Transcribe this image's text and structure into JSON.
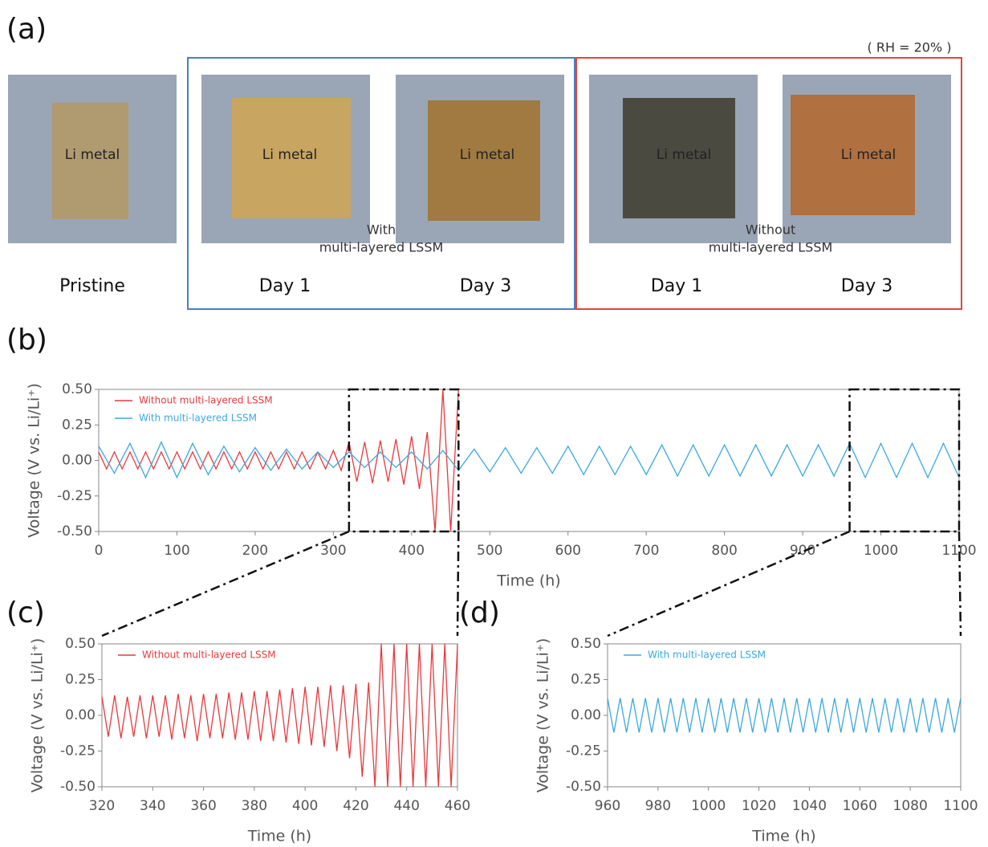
{
  "panel_a": {
    "label": "(a)",
    "rh": "( RH = 20% )",
    "li": [
      "Li metal",
      "Li metal",
      "Li metal",
      "Li metal",
      "Li metal"
    ],
    "with_lines": [
      "With",
      "multi-layered LSSM"
    ],
    "without_lines": [
      "Without",
      "multi-layered LSSM"
    ],
    "captions": [
      "Pristine",
      "Day 1",
      "Day 3",
      "Day 1",
      "Day 3"
    ]
  },
  "chart_data": [
    {
      "type": "line",
      "panel_label": "(b)",
      "xlabel": "Time (h)",
      "ylabel": "Voltage (V vs. Li/Li⁺)",
      "xlim": [
        0,
        1100
      ],
      "xticks": [
        0,
        100,
        200,
        300,
        400,
        500,
        600,
        700,
        800,
        900,
        1000,
        1100
      ],
      "ylim": [
        -0.5,
        0.5
      ],
      "yticks": [
        {
          "value": 0.5,
          "label": "0.50"
        },
        {
          "value": 0.25,
          "label": "0.25"
        },
        {
          "value": 0,
          "label": "0.00"
        },
        {
          "value": -0.25,
          "label": "-0.25"
        },
        {
          "value": -0.5,
          "label": "-0.50"
        }
      ],
      "series": [
        {
          "name": "Without multi-layered LSSM",
          "color": "#e8383d",
          "x": [
            0,
            10,
            20,
            30,
            40,
            50,
            60,
            70,
            80,
            90,
            100,
            110,
            120,
            130,
            140,
            150,
            160,
            170,
            180,
            190,
            200,
            210,
            220,
            230,
            240,
            250,
            260,
            270,
            280,
            290,
            300,
            310,
            320,
            330,
            340,
            350,
            360,
            370,
            380,
            390,
            400,
            410,
            420,
            430,
            440,
            450,
            460
          ],
          "values": [
            0.06,
            -0.06,
            0.06,
            -0.06,
            0.06,
            -0.06,
            0.06,
            -0.06,
            0.06,
            -0.06,
            0.06,
            -0.06,
            0.06,
            -0.06,
            0.06,
            -0.06,
            0.06,
            -0.06,
            0.06,
            -0.06,
            0.06,
            -0.06,
            0.06,
            -0.06,
            0.06,
            -0.06,
            0.06,
            -0.06,
            0.06,
            -0.06,
            0.07,
            -0.07,
            0.13,
            -0.15,
            0.13,
            -0.16,
            0.14,
            -0.15,
            0.15,
            -0.17,
            0.17,
            -0.2,
            0.2,
            -0.5,
            0.5,
            -0.5,
            0.5
          ]
        },
        {
          "name": "With multi-layered LSSM",
          "color": "#3aa8e0",
          "x": [
            0,
            20,
            40,
            60,
            80,
            100,
            120,
            140,
            160,
            180,
            200,
            220,
            240,
            260,
            280,
            300,
            320,
            340,
            360,
            380,
            400,
            420,
            440,
            460,
            480,
            500,
            520,
            540,
            560,
            580,
            600,
            620,
            640,
            660,
            680,
            700,
            720,
            740,
            760,
            780,
            800,
            820,
            840,
            860,
            880,
            900,
            920,
            940,
            960,
            980,
            1000,
            1020,
            1040,
            1060,
            1080,
            1100
          ],
          "values": [
            0.1,
            -0.09,
            0.12,
            -0.12,
            0.13,
            -0.12,
            0.12,
            -0.1,
            0.1,
            -0.08,
            0.09,
            -0.07,
            0.08,
            -0.06,
            0.06,
            -0.05,
            0.06,
            -0.05,
            0.06,
            -0.05,
            0.06,
            -0.06,
            0.07,
            -0.07,
            0.08,
            -0.08,
            0.09,
            -0.09,
            0.09,
            -0.09,
            0.1,
            -0.1,
            0.1,
            -0.1,
            0.1,
            -0.1,
            0.11,
            -0.11,
            0.11,
            -0.11,
            0.11,
            -0.11,
            0.11,
            -0.11,
            0.11,
            -0.11,
            0.11,
            -0.11,
            0.12,
            -0.12,
            0.12,
            -0.12,
            0.12,
            -0.12,
            0.12,
            -0.12
          ]
        }
      ]
    },
    {
      "type": "line",
      "panel_label": "(c)",
      "xlabel": "Time (h)",
      "ylabel": "Voltage (V vs. Li/Li⁺)",
      "xlim": [
        320,
        460
      ],
      "xticks": [
        320,
        340,
        360,
        380,
        400,
        420,
        440,
        460
      ],
      "ylim": [
        -0.5,
        0.5
      ],
      "yticks": [
        {
          "value": 0.5,
          "label": "0.50"
        },
        {
          "value": 0.25,
          "label": "0.25"
        },
        {
          "value": 0,
          "label": "0.00"
        },
        {
          "value": -0.25,
          "label": "-0.25"
        },
        {
          "value": -0.5,
          "label": "-0.50"
        }
      ],
      "series": [
        {
          "name": "Without multi-layered LSSM",
          "color": "#e8383d",
          "x": [
            320,
            322.5,
            325,
            327.5,
            330,
            332.5,
            335,
            337.5,
            340,
            342.5,
            345,
            347.5,
            350,
            352.5,
            355,
            357.5,
            360,
            362.5,
            365,
            367.5,
            370,
            372.5,
            375,
            377.5,
            380,
            382.5,
            385,
            387.5,
            390,
            392.5,
            395,
            397.5,
            400,
            402.5,
            405,
            407.5,
            410,
            412.5,
            415,
            417.5,
            420,
            422.5,
            425,
            427.5,
            430,
            432.5,
            435,
            437.5,
            440,
            442.5,
            445,
            447.5,
            450,
            452.5,
            455,
            457.5,
            460
          ],
          "values": [
            0.13,
            -0.15,
            0.14,
            -0.16,
            0.13,
            -0.15,
            0.14,
            -0.16,
            0.14,
            -0.15,
            0.14,
            -0.17,
            0.15,
            -0.16,
            0.14,
            -0.18,
            0.15,
            -0.16,
            0.15,
            -0.16,
            0.16,
            -0.17,
            0.16,
            -0.17,
            0.17,
            -0.18,
            0.17,
            -0.18,
            0.18,
            -0.19,
            0.19,
            -0.2,
            0.2,
            -0.21,
            0.2,
            -0.22,
            0.21,
            -0.25,
            0.21,
            -0.3,
            0.22,
            -0.43,
            0.23,
            -0.5,
            0.5,
            -0.5,
            0.5,
            -0.5,
            0.5,
            -0.5,
            0.5,
            -0.5,
            0.5,
            -0.5,
            0.5,
            -0.5,
            0.5
          ]
        }
      ]
    },
    {
      "type": "line",
      "panel_label": "(d)",
      "xlabel": "Time (h)",
      "ylabel": "Voltage (V vs. Li/Li⁺)",
      "xlim": [
        960,
        1100
      ],
      "xticks": [
        960,
        980,
        1000,
        1020,
        1040,
        1060,
        1080,
        1100
      ],
      "ylim": [
        -0.5,
        0.5
      ],
      "yticks": [
        {
          "value": 0.5,
          "label": "0.50"
        },
        {
          "value": 0.25,
          "label": "0.25"
        },
        {
          "value": 0,
          "label": "0.00"
        },
        {
          "value": -0.25,
          "label": "-0.25"
        },
        {
          "value": -0.5,
          "label": "-0.50"
        }
      ],
      "series": [
        {
          "name": "With multi-layered LSSM",
          "color": "#3aa8e0",
          "x": [
            960,
            962.5,
            965,
            967.5,
            970,
            972.5,
            975,
            977.5,
            980,
            982.5,
            985,
            987.5,
            990,
            992.5,
            995,
            997.5,
            1000,
            1002.5,
            1005,
            1007.5,
            1010,
            1012.5,
            1015,
            1017.5,
            1020,
            1022.5,
            1025,
            1027.5,
            1030,
            1032.5,
            1035,
            1037.5,
            1040,
            1042.5,
            1045,
            1047.5,
            1050,
            1052.5,
            1055,
            1057.5,
            1060,
            1062.5,
            1065,
            1067.5,
            1070,
            1072.5,
            1075,
            1077.5,
            1080,
            1082.5,
            1085,
            1087.5,
            1090,
            1092.5,
            1095,
            1097.5,
            1100
          ],
          "values": [
            0.12,
            -0.12,
            0.12,
            -0.12,
            0.12,
            -0.12,
            0.12,
            -0.12,
            0.12,
            -0.12,
            0.12,
            -0.12,
            0.12,
            -0.12,
            0.12,
            -0.12,
            0.12,
            -0.12,
            0.12,
            -0.12,
            0.12,
            -0.12,
            0.12,
            -0.12,
            0.12,
            -0.12,
            0.12,
            -0.12,
            0.12,
            -0.12,
            0.12,
            -0.12,
            0.12,
            -0.12,
            0.12,
            -0.12,
            0.12,
            -0.12,
            0.12,
            -0.12,
            0.12,
            -0.12,
            0.12,
            -0.12,
            0.12,
            -0.12,
            0.12,
            -0.12,
            0.12,
            -0.12,
            0.12,
            -0.12,
            0.12,
            -0.12,
            0.12,
            -0.12,
            0.12
          ]
        }
      ]
    }
  ]
}
